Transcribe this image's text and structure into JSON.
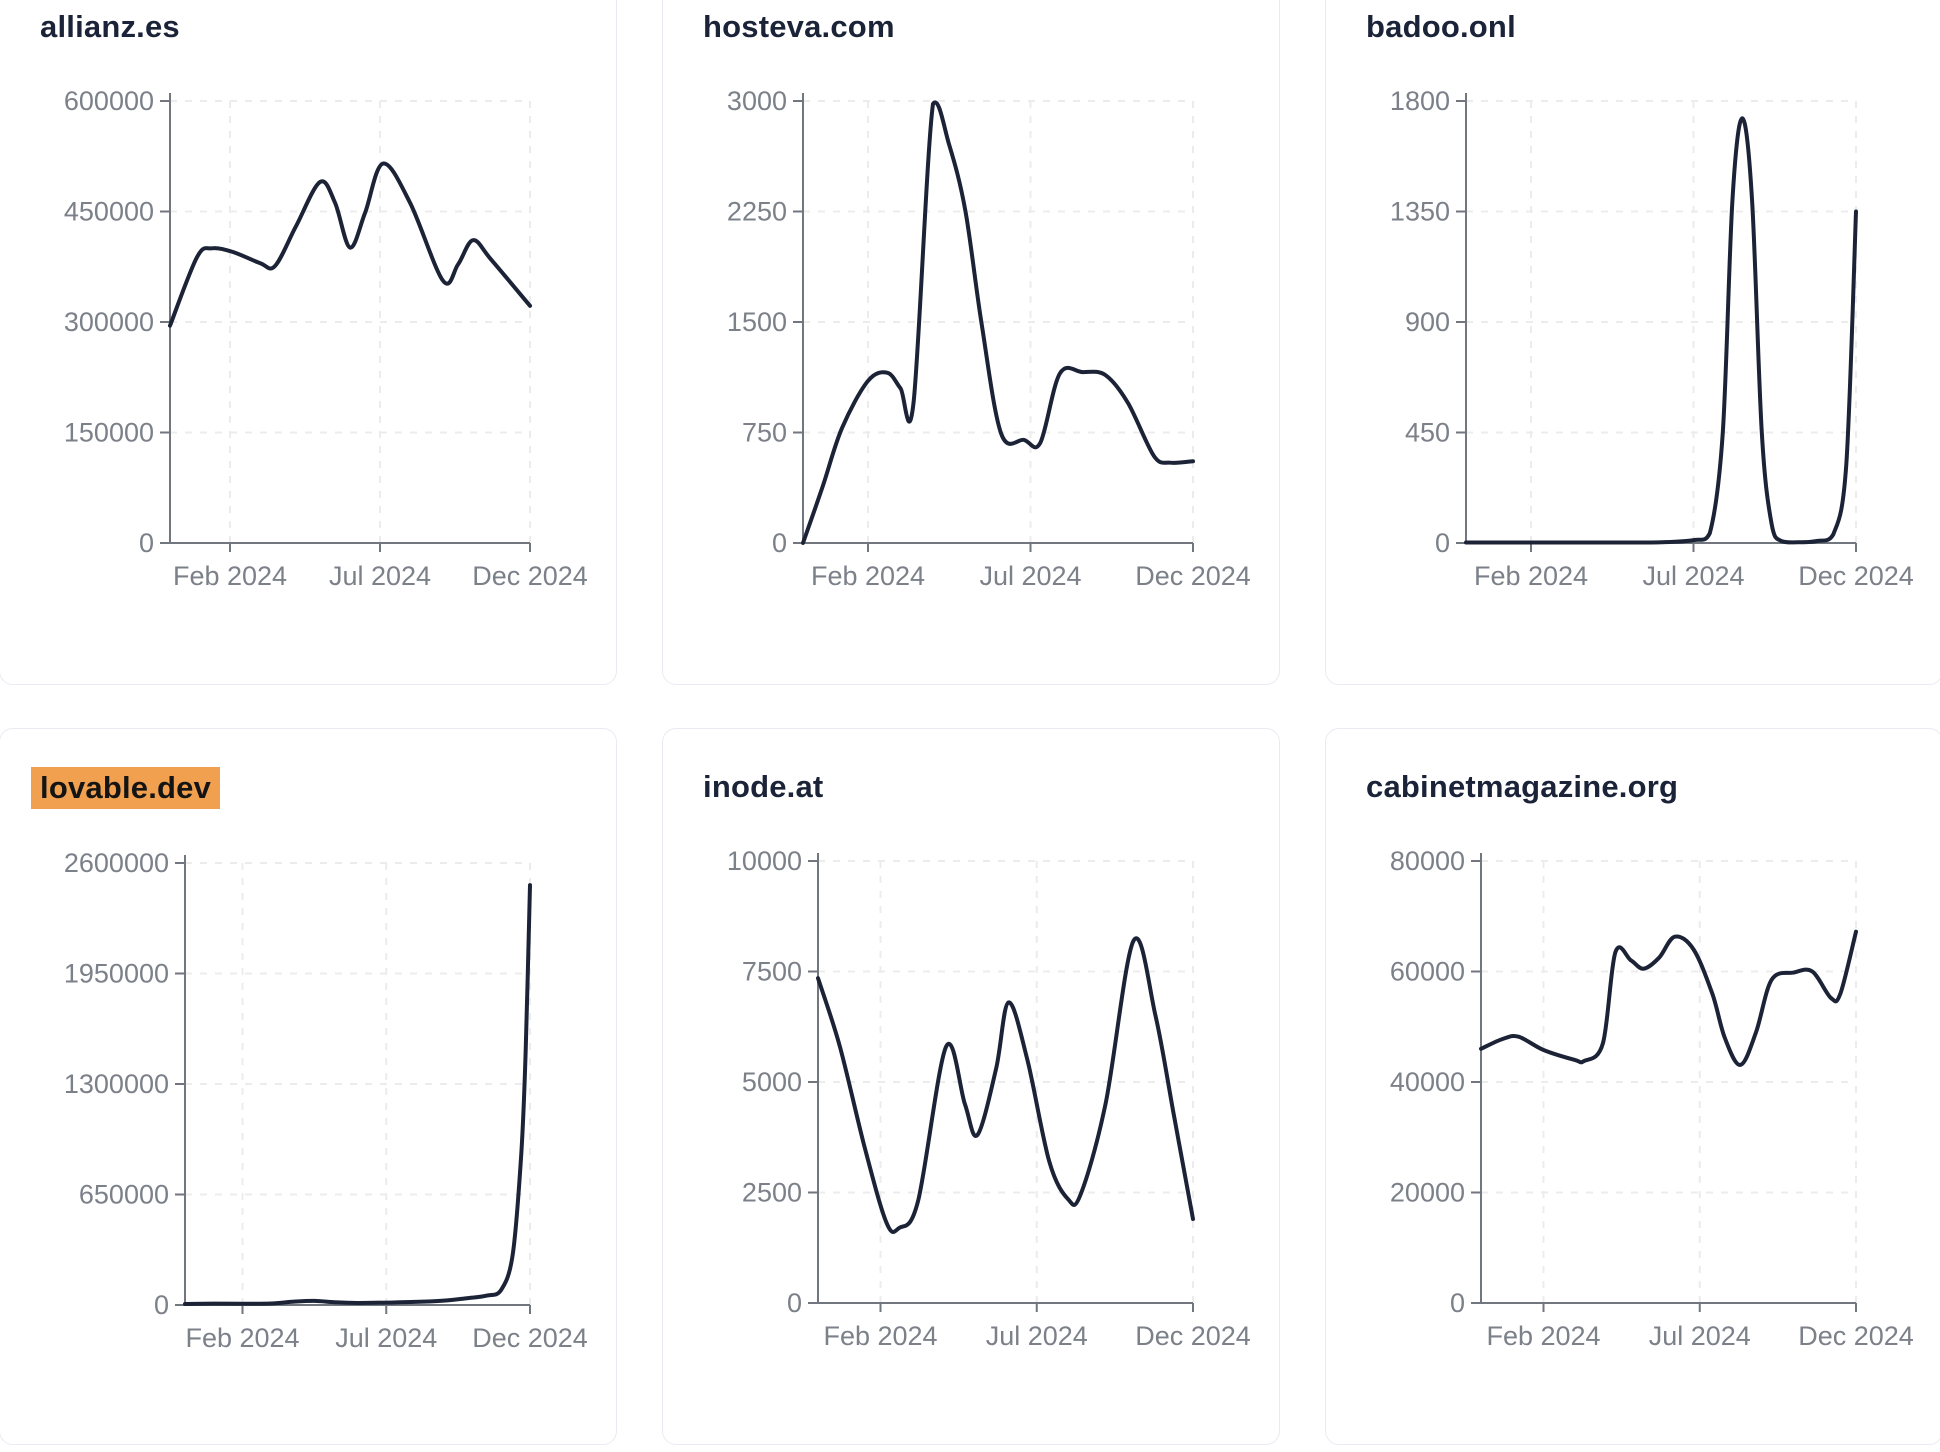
{
  "page_bg": "#ffffff",
  "style": {
    "line_color": "#1c2337",
    "title_color": "#1b2338",
    "axis_color": "#71767f",
    "tick_text_color": "#7b8089",
    "grid_color": "#ececec",
    "card_border": "#e8ebf1",
    "highlight_bg": "#f0a04f",
    "highlight_text": "#141414"
  },
  "x_axis": {
    "domain_months": [
      0,
      12
    ],
    "ticks": [
      {
        "t": 2,
        "label": "Feb 2024"
      },
      {
        "t": 7,
        "label": "Jul 2024"
      },
      {
        "t": 12,
        "label": "Dec 2024"
      }
    ]
  },
  "chart_data": [
    {
      "type": "line",
      "title": "allianz.es",
      "highlighted": false,
      "ylim": [
        0,
        600000
      ],
      "y_ticks": [
        0,
        150000,
        300000,
        450000,
        600000
      ],
      "x_tick_labels": [
        "Feb 2024",
        "Jul 2024",
        "Dec 2024"
      ],
      "points": [
        [
          0,
          295000
        ],
        [
          0.9,
          388000
        ],
        [
          1.4,
          400000
        ],
        [
          2.1,
          395000
        ],
        [
          3,
          380000
        ],
        [
          3.5,
          376000
        ],
        [
          4.2,
          430000
        ],
        [
          5,
          490000
        ],
        [
          5.5,
          462000
        ],
        [
          6,
          401000
        ],
        [
          6.5,
          448000
        ],
        [
          7.1,
          515000
        ],
        [
          8,
          462000
        ],
        [
          9.1,
          356000
        ],
        [
          9.6,
          378000
        ],
        [
          10.1,
          411000
        ],
        [
          10.7,
          385000
        ],
        [
          12,
          322000
        ]
      ]
    },
    {
      "type": "line",
      "title": "hosteva.com",
      "highlighted": false,
      "ylim": [
        0,
        3000
      ],
      "y_ticks": [
        0,
        750,
        1500,
        2250,
        3000
      ],
      "x_tick_labels": [
        "Feb 2024",
        "Jul 2024",
        "Dec 2024"
      ],
      "points": [
        [
          0,
          0
        ],
        [
          0.6,
          380
        ],
        [
          1.2,
          780
        ],
        [
          2,
          1100
        ],
        [
          2.6,
          1155
        ],
        [
          3,
          1050
        ],
        [
          3.4,
          950
        ],
        [
          4,
          2980
        ],
        [
          4.5,
          2700
        ],
        [
          5,
          2250
        ],
        [
          5.5,
          1480
        ],
        [
          6.1,
          740
        ],
        [
          6.8,
          700
        ],
        [
          7.3,
          680
        ],
        [
          7.9,
          1150
        ],
        [
          8.6,
          1160
        ],
        [
          9.3,
          1140
        ],
        [
          10,
          950
        ],
        [
          10.8,
          590
        ],
        [
          11.3,
          545
        ],
        [
          12,
          555
        ]
      ]
    },
    {
      "type": "line",
      "title": "badoo.onl",
      "highlighted": false,
      "ylim": [
        0,
        1800
      ],
      "y_ticks": [
        0,
        450,
        900,
        1350,
        1800
      ],
      "x_tick_labels": [
        "Feb 2024",
        "Jul 2024",
        "Dec 2024"
      ],
      "points": [
        [
          0,
          2
        ],
        [
          1,
          2
        ],
        [
          2,
          2
        ],
        [
          3,
          2
        ],
        [
          4,
          2
        ],
        [
          5,
          2
        ],
        [
          6,
          3
        ],
        [
          7,
          12
        ],
        [
          7.5,
          40
        ],
        [
          7.9,
          450
        ],
        [
          8.2,
          1400
        ],
        [
          8.5,
          1730
        ],
        [
          8.8,
          1400
        ],
        [
          9.1,
          450
        ],
        [
          9.4,
          80
        ],
        [
          9.7,
          8
        ],
        [
          10.2,
          3
        ],
        [
          10.8,
          8
        ],
        [
          11.3,
          35
        ],
        [
          11.7,
          320
        ],
        [
          12,
          1350
        ]
      ]
    },
    {
      "type": "line",
      "title": "lovable.dev",
      "highlighted": true,
      "ylim": [
        0,
        2600000
      ],
      "y_ticks": [
        0,
        650000,
        1300000,
        1950000,
        2600000
      ],
      "x_tick_labels": [
        "Feb 2024",
        "Jul 2024",
        "Dec 2024"
      ],
      "points": [
        [
          0,
          6000
        ],
        [
          1,
          8000
        ],
        [
          2,
          7000
        ],
        [
          3,
          9000
        ],
        [
          3.8,
          20000
        ],
        [
          4.5,
          24000
        ],
        [
          5.2,
          16000
        ],
        [
          6,
          12000
        ],
        [
          7,
          14000
        ],
        [
          8,
          18000
        ],
        [
          9,
          26000
        ],
        [
          9.8,
          40000
        ],
        [
          10.5,
          55000
        ],
        [
          11,
          90000
        ],
        [
          11.4,
          300000
        ],
        [
          11.7,
          900000
        ],
        [
          11.85,
          1500000
        ],
        [
          12,
          2470000
        ]
      ]
    },
    {
      "type": "line",
      "title": "inode.at",
      "highlighted": false,
      "ylim": [
        0,
        10000
      ],
      "y_ticks": [
        0,
        2500,
        5000,
        7500,
        10000
      ],
      "x_tick_labels": [
        "Feb 2024",
        "Jul 2024",
        "Dec 2024"
      ],
      "points": [
        [
          0,
          7350
        ],
        [
          0.7,
          5800
        ],
        [
          1.5,
          3500
        ],
        [
          2.2,
          1800
        ],
        [
          2.6,
          1700
        ],
        [
          3.2,
          2300
        ],
        [
          4.1,
          5800
        ],
        [
          4.7,
          4500
        ],
        [
          5.1,
          3800
        ],
        [
          5.7,
          5300
        ],
        [
          6.1,
          6800
        ],
        [
          6.7,
          5500
        ],
        [
          7.4,
          3200
        ],
        [
          8,
          2350
        ],
        [
          8.4,
          2450
        ],
        [
          9.2,
          4500
        ],
        [
          10.1,
          8200
        ],
        [
          10.8,
          6500
        ],
        [
          11.4,
          4200
        ],
        [
          12,
          1900
        ]
      ]
    },
    {
      "type": "line",
      "title": "cabinetmagazine.org",
      "highlighted": false,
      "ylim": [
        0,
        80000
      ],
      "y_ticks": [
        0,
        20000,
        40000,
        60000,
        80000
      ],
      "x_tick_labels": [
        "Feb 2024",
        "Jul 2024",
        "Dec 2024"
      ],
      "points": [
        [
          0,
          46000
        ],
        [
          0.7,
          47800
        ],
        [
          1.2,
          48200
        ],
        [
          2,
          45800
        ],
        [
          3,
          44000
        ],
        [
          3.3,
          43800
        ],
        [
          3.9,
          47000
        ],
        [
          4.3,
          63500
        ],
        [
          4.8,
          62000
        ],
        [
          5.2,
          60500
        ],
        [
          5.7,
          62500
        ],
        [
          6.2,
          66300
        ],
        [
          6.8,
          64000
        ],
        [
          7.4,
          56000
        ],
        [
          7.8,
          48000
        ],
        [
          8.3,
          43100
        ],
        [
          8.8,
          49000
        ],
        [
          9.3,
          58500
        ],
        [
          10,
          59800
        ],
        [
          10.6,
          60000
        ],
        [
          11.2,
          55200
        ],
        [
          11.5,
          56000
        ],
        [
          12,
          67200
        ]
      ]
    }
  ]
}
